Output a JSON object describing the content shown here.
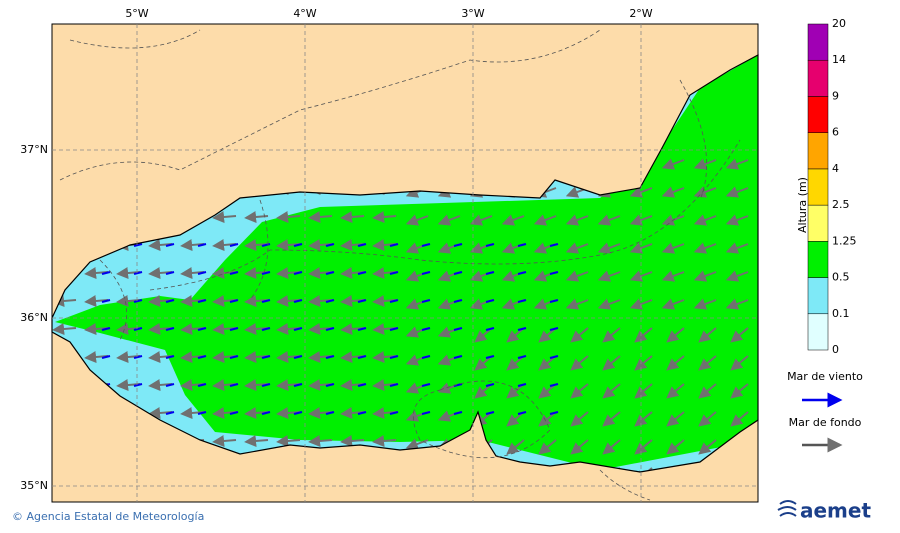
{
  "map": {
    "lon_labels": [
      "5°W",
      "4°W",
      "3°W",
      "2°W"
    ],
    "lat_labels": [
      "37°N",
      "36°N",
      "35°N"
    ],
    "colorbar": {
      "title": "Altura (m)",
      "levels": [
        0,
        0.1,
        0.5,
        1.25,
        2.5,
        4,
        6,
        9,
        14,
        20
      ],
      "colors": [
        "#e0ffff",
        "#7ee9f7",
        "#00f000",
        "#ffff66",
        "#ffd700",
        "#ffa500",
        "#ff0000",
        "#e6006e",
        "#a000b4"
      ]
    },
    "legend": [
      {
        "label": "Mar de viento",
        "color": "#0000ee"
      },
      {
        "label": "Mar de fondo",
        "color": "#555555"
      }
    ],
    "footer": {
      "credit": "© Agencia Estatal de Meteorología",
      "logo": "aemet"
    }
  }
}
